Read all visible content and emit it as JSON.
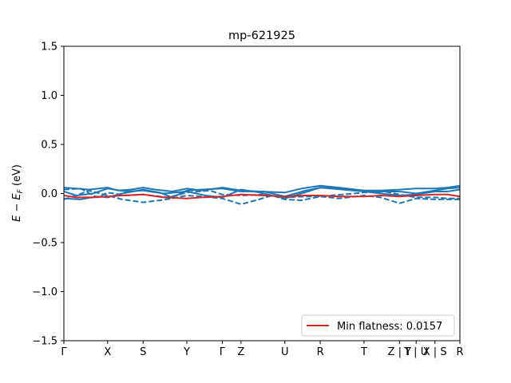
{
  "chart_data": {
    "type": "line",
    "title": "mp-621925",
    "ylabel": "E − E_F (eV)",
    "ylabel_main": "E − E",
    "ylabel_sub": "F",
    "ylabel_unit": " (eV)",
    "ylim": [
      -1.5,
      1.5
    ],
    "xlim": [
      0,
      9.5
    ],
    "yticks": [
      {
        "value": 1.5,
        "label": "1.5"
      },
      {
        "value": 1.0,
        "label": "1.0"
      },
      {
        "value": 0.5,
        "label": "0.5"
      },
      {
        "value": 0.0,
        "label": "0.0"
      },
      {
        "value": -0.5,
        "label": "−0.5"
      },
      {
        "value": -1.0,
        "label": "−1.0"
      },
      {
        "value": -1.5,
        "label": "−1.5"
      }
    ],
    "xticks": [
      {
        "pos": 0.0,
        "label": "Γ"
      },
      {
        "pos": 1.05,
        "label": "X"
      },
      {
        "pos": 1.9,
        "label": "S"
      },
      {
        "pos": 2.95,
        "label": "Y"
      },
      {
        "pos": 3.8,
        "label": "Γ"
      },
      {
        "pos": 4.25,
        "label": "Z"
      },
      {
        "pos": 5.3,
        "label": "U"
      },
      {
        "pos": 6.15,
        "label": "R"
      },
      {
        "pos": 7.2,
        "label": "T"
      },
      {
        "pos": 8.05,
        "label": "Z | Y"
      },
      {
        "pos": 8.45,
        "label": "T | U"
      },
      {
        "pos": 8.9,
        "label": "X | S"
      },
      {
        "pos": 9.5,
        "label": "R"
      }
    ],
    "colors": {
      "bands": "#1f77b4",
      "flat_band": "#d62728"
    },
    "legend": {
      "label": "Min flatness: 0.0157",
      "placement": "lower right"
    },
    "series": [
      {
        "style": "solid",
        "color": "#1f77b4",
        "x": [
          0,
          0.3,
          0.6,
          1.05,
          1.3,
          1.6,
          1.9,
          2.2,
          2.6,
          2.95,
          3.3,
          3.8,
          4.25,
          4.7,
          5.3,
          5.7,
          6.15,
          6.6,
          7.2,
          7.6,
          8.05,
          8.45,
          8.9,
          9.2,
          9.5
        ],
        "y": [
          0.06,
          0.05,
          0.04,
          0.06,
          0.03,
          0.04,
          0.06,
          0.04,
          0.02,
          0.05,
          0.03,
          0.06,
          0.03,
          0.02,
          0.01,
          0.05,
          0.08,
          0.06,
          0.03,
          0.03,
          0.04,
          0.05,
          0.05,
          0.06,
          0.08
        ]
      },
      {
        "style": "solid",
        "color": "#1f77b4",
        "x": [
          0,
          0.4,
          0.8,
          1.05,
          1.4,
          1.9,
          2.3,
          2.6,
          2.95,
          3.3,
          3.8,
          4.25,
          4.8,
          5.3,
          5.8,
          6.15,
          6.7,
          7.2,
          7.6,
          8.05,
          8.45,
          8.9,
          9.2,
          9.5
        ],
        "y": [
          -0.05,
          -0.06,
          -0.03,
          -0.04,
          0.0,
          0.04,
          0.01,
          -0.04,
          0.03,
          0.04,
          0.05,
          0.02,
          0.02,
          -0.03,
          0.03,
          0.06,
          0.05,
          0.02,
          0.02,
          0.02,
          0.0,
          0.03,
          0.05,
          0.06
        ]
      },
      {
        "style": "solid",
        "color": "#1f77b4",
        "x": [
          0,
          0.3,
          0.7,
          1.05,
          1.5,
          1.9,
          2.4,
          2.95,
          3.4,
          3.8,
          4.25,
          4.7,
          5.3,
          5.7,
          6.15,
          6.7,
          7.2,
          7.6,
          8.05,
          8.45,
          8.9,
          9.2,
          9.5
        ],
        "y": [
          0.02,
          -0.02,
          0.0,
          0.05,
          0.02,
          0.03,
          0.0,
          0.02,
          -0.02,
          -0.04,
          0.04,
          0.01,
          -0.05,
          0.0,
          0.06,
          0.04,
          0.02,
          0.0,
          -0.02,
          -0.01,
          0.02,
          0.02,
          0.04
        ]
      },
      {
        "style": "dashed",
        "color": "#1f77b4",
        "x": [
          0,
          0.3,
          0.6,
          1.05,
          1.4,
          1.9,
          2.3,
          2.6,
          2.95,
          3.3,
          3.8,
          4.25,
          4.6,
          5.0,
          5.3,
          5.7,
          6.15,
          6.6,
          7.2,
          7.6,
          8.05,
          8.45,
          8.9,
          9.2,
          9.5
        ],
        "y": [
          -0.06,
          -0.02,
          0.03,
          -0.02,
          -0.06,
          -0.09,
          -0.07,
          -0.05,
          -0.02,
          -0.03,
          -0.05,
          -0.11,
          -0.07,
          -0.02,
          -0.06,
          -0.07,
          -0.03,
          -0.05,
          -0.02,
          -0.04,
          -0.1,
          -0.05,
          -0.06,
          -0.06,
          -0.06
        ]
      },
      {
        "style": "dashed",
        "color": "#1f77b4",
        "x": [
          0,
          0.4,
          0.8,
          1.05,
          1.5,
          1.9,
          2.5,
          2.95,
          3.5,
          3.8,
          4.25,
          4.8,
          5.3,
          5.8,
          6.15,
          6.7,
          7.2,
          7.7,
          8.05,
          8.45,
          8.9,
          9.2,
          9.5
        ],
        "y": [
          0.04,
          0.05,
          -0.04,
          0.01,
          -0.02,
          -0.01,
          -0.04,
          0.01,
          0.03,
          -0.01,
          -0.02,
          -0.01,
          -0.04,
          -0.03,
          -0.03,
          -0.01,
          0.01,
          0.02,
          -0.01,
          -0.04,
          -0.04,
          -0.05,
          -0.05
        ]
      },
      {
        "style": "solid",
        "color": "#d62728",
        "x": [
          0,
          0.3,
          0.7,
          1.05,
          1.4,
          1.9,
          2.4,
          2.95,
          3.3,
          3.8,
          4.25,
          4.8,
          5.3,
          5.8,
          6.15,
          6.6,
          7.2,
          7.6,
          8.05,
          8.45,
          8.9,
          9.2,
          9.5
        ],
        "y": [
          -0.02,
          -0.04,
          -0.04,
          -0.03,
          -0.02,
          -0.01,
          -0.04,
          -0.05,
          -0.04,
          -0.03,
          -0.01,
          -0.02,
          -0.03,
          -0.02,
          -0.02,
          -0.03,
          -0.03,
          -0.02,
          -0.03,
          -0.02,
          -0.01,
          -0.01,
          -0.03
        ]
      }
    ]
  }
}
